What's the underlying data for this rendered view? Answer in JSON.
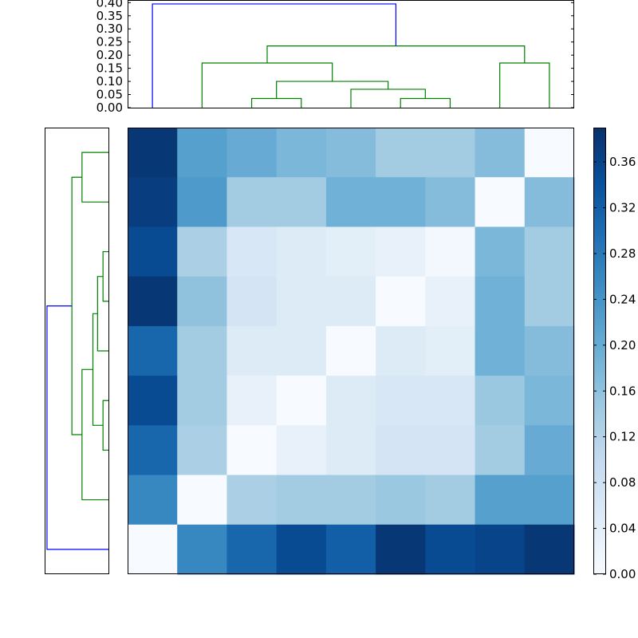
{
  "chart_data": {
    "type": "heatmap",
    "title": "",
    "colors": {
      "cluster_link": "#008000",
      "root_link": "#0000ff",
      "cmap": [
        "#f7fbff",
        "#deebf7",
        "#c6dbef",
        "#9ecae1",
        "#6baed6",
        "#4292c6",
        "#2171b5",
        "#08519c",
        "#08306b"
      ]
    },
    "heatmap": {
      "rows": 9,
      "cols": 9,
      "values": [
        [
          0.38,
          0.22,
          0.2,
          0.18,
          0.17,
          0.14,
          0.14,
          0.17,
          0.0
        ],
        [
          0.37,
          0.23,
          0.14,
          0.14,
          0.19,
          0.19,
          0.17,
          0.0,
          0.17
        ],
        [
          0.35,
          0.13,
          0.06,
          0.05,
          0.04,
          0.03,
          0.01,
          0.18,
          0.14
        ],
        [
          0.38,
          0.16,
          0.07,
          0.05,
          0.05,
          0.0,
          0.03,
          0.19,
          0.14
        ],
        [
          0.31,
          0.14,
          0.05,
          0.05,
          0.0,
          0.05,
          0.04,
          0.19,
          0.17
        ],
        [
          0.35,
          0.14,
          0.03,
          0.0,
          0.05,
          0.06,
          0.06,
          0.15,
          0.18
        ],
        [
          0.31,
          0.13,
          0.0,
          0.03,
          0.05,
          0.07,
          0.07,
          0.14,
          0.2
        ],
        [
          0.26,
          0.0,
          0.13,
          0.14,
          0.14,
          0.15,
          0.14,
          0.22,
          0.22
        ],
        [
          0.0,
          0.26,
          0.31,
          0.35,
          0.32,
          0.38,
          0.35,
          0.36,
          0.38
        ]
      ],
      "vmin": 0.0,
      "vmax": 0.39
    },
    "colorbar": {
      "ticks": [
        0.0,
        0.04,
        0.08,
        0.12,
        0.16,
        0.2,
        0.24,
        0.28,
        0.32,
        0.36
      ],
      "tick_labels": [
        "0.00",
        "0.04",
        "0.08",
        "0.12",
        "0.16",
        "0.20",
        "0.24",
        "0.28",
        "0.32",
        "0.36"
      ]
    },
    "top_dendrogram": {
      "ylim": [
        0.0,
        0.41
      ],
      "ticks": [
        0.0,
        0.05,
        0.1,
        0.15,
        0.2,
        0.25,
        0.3,
        0.35,
        0.4
      ],
      "tick_labels": [
        "0.00",
        "0.05",
        "0.10",
        "0.15",
        "0.20",
        "0.25",
        "0.30",
        "0.35",
        "0.40"
      ],
      "links": [
        {
          "x": [
            6,
            6,
            7,
            7
          ],
          "y": [
            0.0,
            0.035,
            0.035,
            0.0
          ],
          "color": "cluster_link"
        },
        {
          "x": [
            5,
            5,
            6.5,
            6.5
          ],
          "y": [
            0.0,
            0.07,
            0.07,
            0.035
          ],
          "color": "cluster_link"
        },
        {
          "x": [
            3,
            3,
            4,
            4
          ],
          "y": [
            0.0,
            0.035,
            0.035,
            0.0
          ],
          "color": "cluster_link"
        },
        {
          "x": [
            3.5,
            3.5,
            5.75,
            5.75
          ],
          "y": [
            0.035,
            0.1,
            0.1,
            0.07
          ],
          "color": "cluster_link"
        },
        {
          "x": [
            2,
            2,
            4.625,
            4.625
          ],
          "y": [
            0.0,
            0.17,
            0.17,
            0.1
          ],
          "color": "cluster_link"
        },
        {
          "x": [
            8,
            8,
            9,
            9
          ],
          "y": [
            0.0,
            0.17,
            0.17,
            0.0
          ],
          "color": "cluster_link"
        },
        {
          "x": [
            3.3125,
            3.3125,
            8.5,
            8.5
          ],
          "y": [
            0.17,
            0.235,
            0.235,
            0.17
          ],
          "color": "cluster_link"
        },
        {
          "x": [
            1,
            1,
            5.90625,
            5.90625
          ],
          "y": [
            0.0,
            0.395,
            0.395,
            0.235
          ],
          "color": "root_link"
        }
      ]
    },
    "left_dendrogram": {
      "xlim": [
        0.0,
        0.41
      ],
      "links": [
        {
          "y": [
            1,
            1,
            2,
            2
          ],
          "x": [
            0.0,
            0.17,
            0.17,
            0.0
          ],
          "color": "cluster_link"
        },
        {
          "y": [
            3,
            3,
            4,
            4
          ],
          "x": [
            0.0,
            0.035,
            0.035,
            0.0
          ],
          "color": "cluster_link"
        },
        {
          "y": [
            3.5,
            3.5,
            5,
            5
          ],
          "x": [
            0.035,
            0.07,
            0.07,
            0.0
          ],
          "color": "cluster_link"
        },
        {
          "y": [
            6,
            6,
            7,
            7
          ],
          "x": [
            0.0,
            0.035,
            0.035,
            0.0
          ],
          "color": "cluster_link"
        },
        {
          "y": [
            4.25,
            4.25,
            6.5,
            6.5
          ],
          "x": [
            0.07,
            0.1,
            0.1,
            0.035
          ],
          "color": "cluster_link"
        },
        {
          "y": [
            5.375,
            5.375,
            8,
            8
          ],
          "x": [
            0.1,
            0.17,
            0.17,
            0.0
          ],
          "color": "cluster_link"
        },
        {
          "y": [
            1.5,
            1.5,
            6.6875,
            6.6875
          ],
          "x": [
            0.17,
            0.235,
            0.235,
            0.17
          ],
          "color": "cluster_link"
        },
        {
          "y": [
            4.09375,
            4.09375,
            9,
            9
          ],
          "x": [
            0.235,
            0.395,
            0.395,
            0.0
          ],
          "color": "root_link"
        }
      ]
    }
  }
}
